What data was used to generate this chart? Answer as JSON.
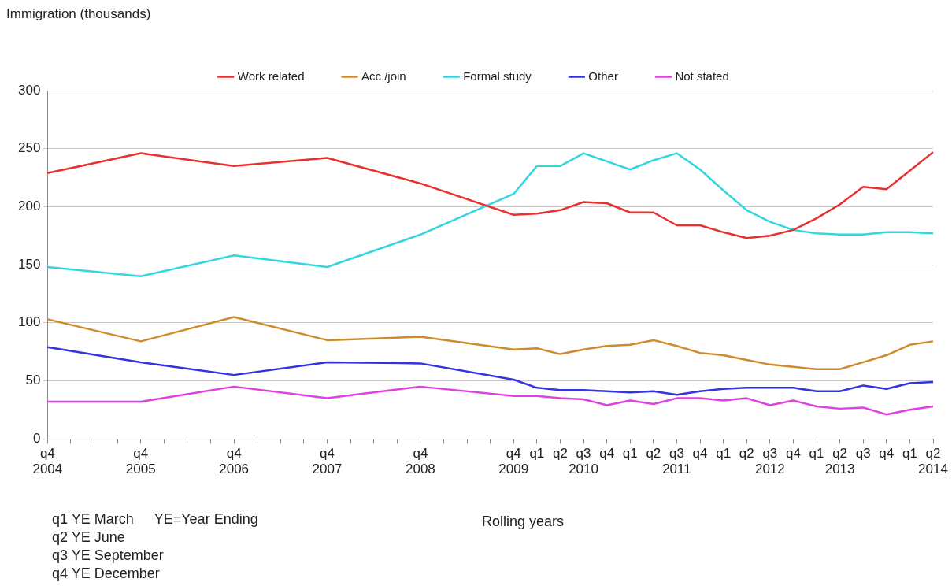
{
  "chart_data": {
    "type": "line",
    "ylabel": "Immigration (thousands)",
    "xlabel": "Rolling years",
    "categories": [
      "q4\n2004",
      null,
      null,
      null,
      "q4\n2005",
      null,
      null,
      null,
      "q4\n2006",
      null,
      null,
      null,
      "q4\n2007",
      null,
      null,
      null,
      "q4\n2008",
      null,
      null,
      null,
      "q4\n2009",
      "q1",
      "q2",
      "q3\n2010",
      "q4",
      "q1",
      "q2",
      "q3\n2011",
      "q4",
      "q1",
      "q2",
      "q3\n2012",
      "q4",
      "q1",
      "q2\n2013",
      "q3",
      "q4",
      "q1",
      "q2\n2014"
    ],
    "series": [
      {
        "name": "Work related",
        "color": "#e8312f",
        "values": [
          229,
          null,
          null,
          null,
          246,
          null,
          null,
          null,
          235,
          null,
          null,
          null,
          242,
          null,
          null,
          null,
          220,
          null,
          null,
          null,
          193,
          194,
          197,
          204,
          203,
          195,
          195,
          184,
          184,
          178,
          173,
          175,
          180,
          190,
          202,
          217,
          215,
          231,
          247
        ]
      },
      {
        "name": "Acc./join",
        "color": "#d08a2e",
        "values": [
          103,
          null,
          null,
          null,
          84,
          null,
          null,
          null,
          105,
          null,
          null,
          null,
          85,
          null,
          null,
          null,
          88,
          null,
          null,
          null,
          77,
          78,
          73,
          77,
          80,
          81,
          85,
          80,
          74,
          72,
          68,
          64,
          62,
          60,
          60,
          66,
          72,
          81,
          84
        ]
      },
      {
        "name": "Formal study",
        "color": "#33d6e0",
        "values": [
          148,
          null,
          null,
          null,
          140,
          null,
          null,
          null,
          158,
          null,
          null,
          null,
          148,
          null,
          null,
          null,
          176,
          null,
          null,
          null,
          211,
          235,
          235,
          246,
          239,
          232,
          240,
          246,
          232,
          214,
          197,
          187,
          180,
          177,
          176,
          176,
          178,
          178,
          177
        ]
      },
      {
        "name": "Other",
        "color": "#3333e0",
        "values": [
          79,
          null,
          null,
          null,
          66,
          null,
          null,
          null,
          55,
          null,
          null,
          null,
          66,
          null,
          null,
          null,
          65,
          null,
          null,
          null,
          51,
          44,
          42,
          42,
          41,
          40,
          41,
          38,
          41,
          43,
          44,
          44,
          44,
          41,
          41,
          46,
          43,
          48,
          49
        ]
      },
      {
        "name": "Not stated",
        "color": "#e040e0",
        "values": [
          32,
          null,
          null,
          null,
          32,
          null,
          null,
          null,
          45,
          null,
          null,
          null,
          35,
          null,
          null,
          null,
          45,
          null,
          null,
          null,
          37,
          37,
          35,
          34,
          29,
          33,
          30,
          35,
          35,
          33,
          35,
          29,
          33,
          28,
          26,
          27,
          21,
          25,
          28
        ]
      }
    ],
    "ylim": [
      0,
      300
    ],
    "yticks": [
      0,
      50,
      100,
      150,
      200,
      250,
      300
    ],
    "grid": "y",
    "legend": "top",
    "marker": "none",
    "line_style": "solid",
    "annotations": [
      "q1 YE March",
      "YE=Year Ending",
      "q2 YE June",
      "q3 YE September",
      "q4 YE December"
    ]
  }
}
